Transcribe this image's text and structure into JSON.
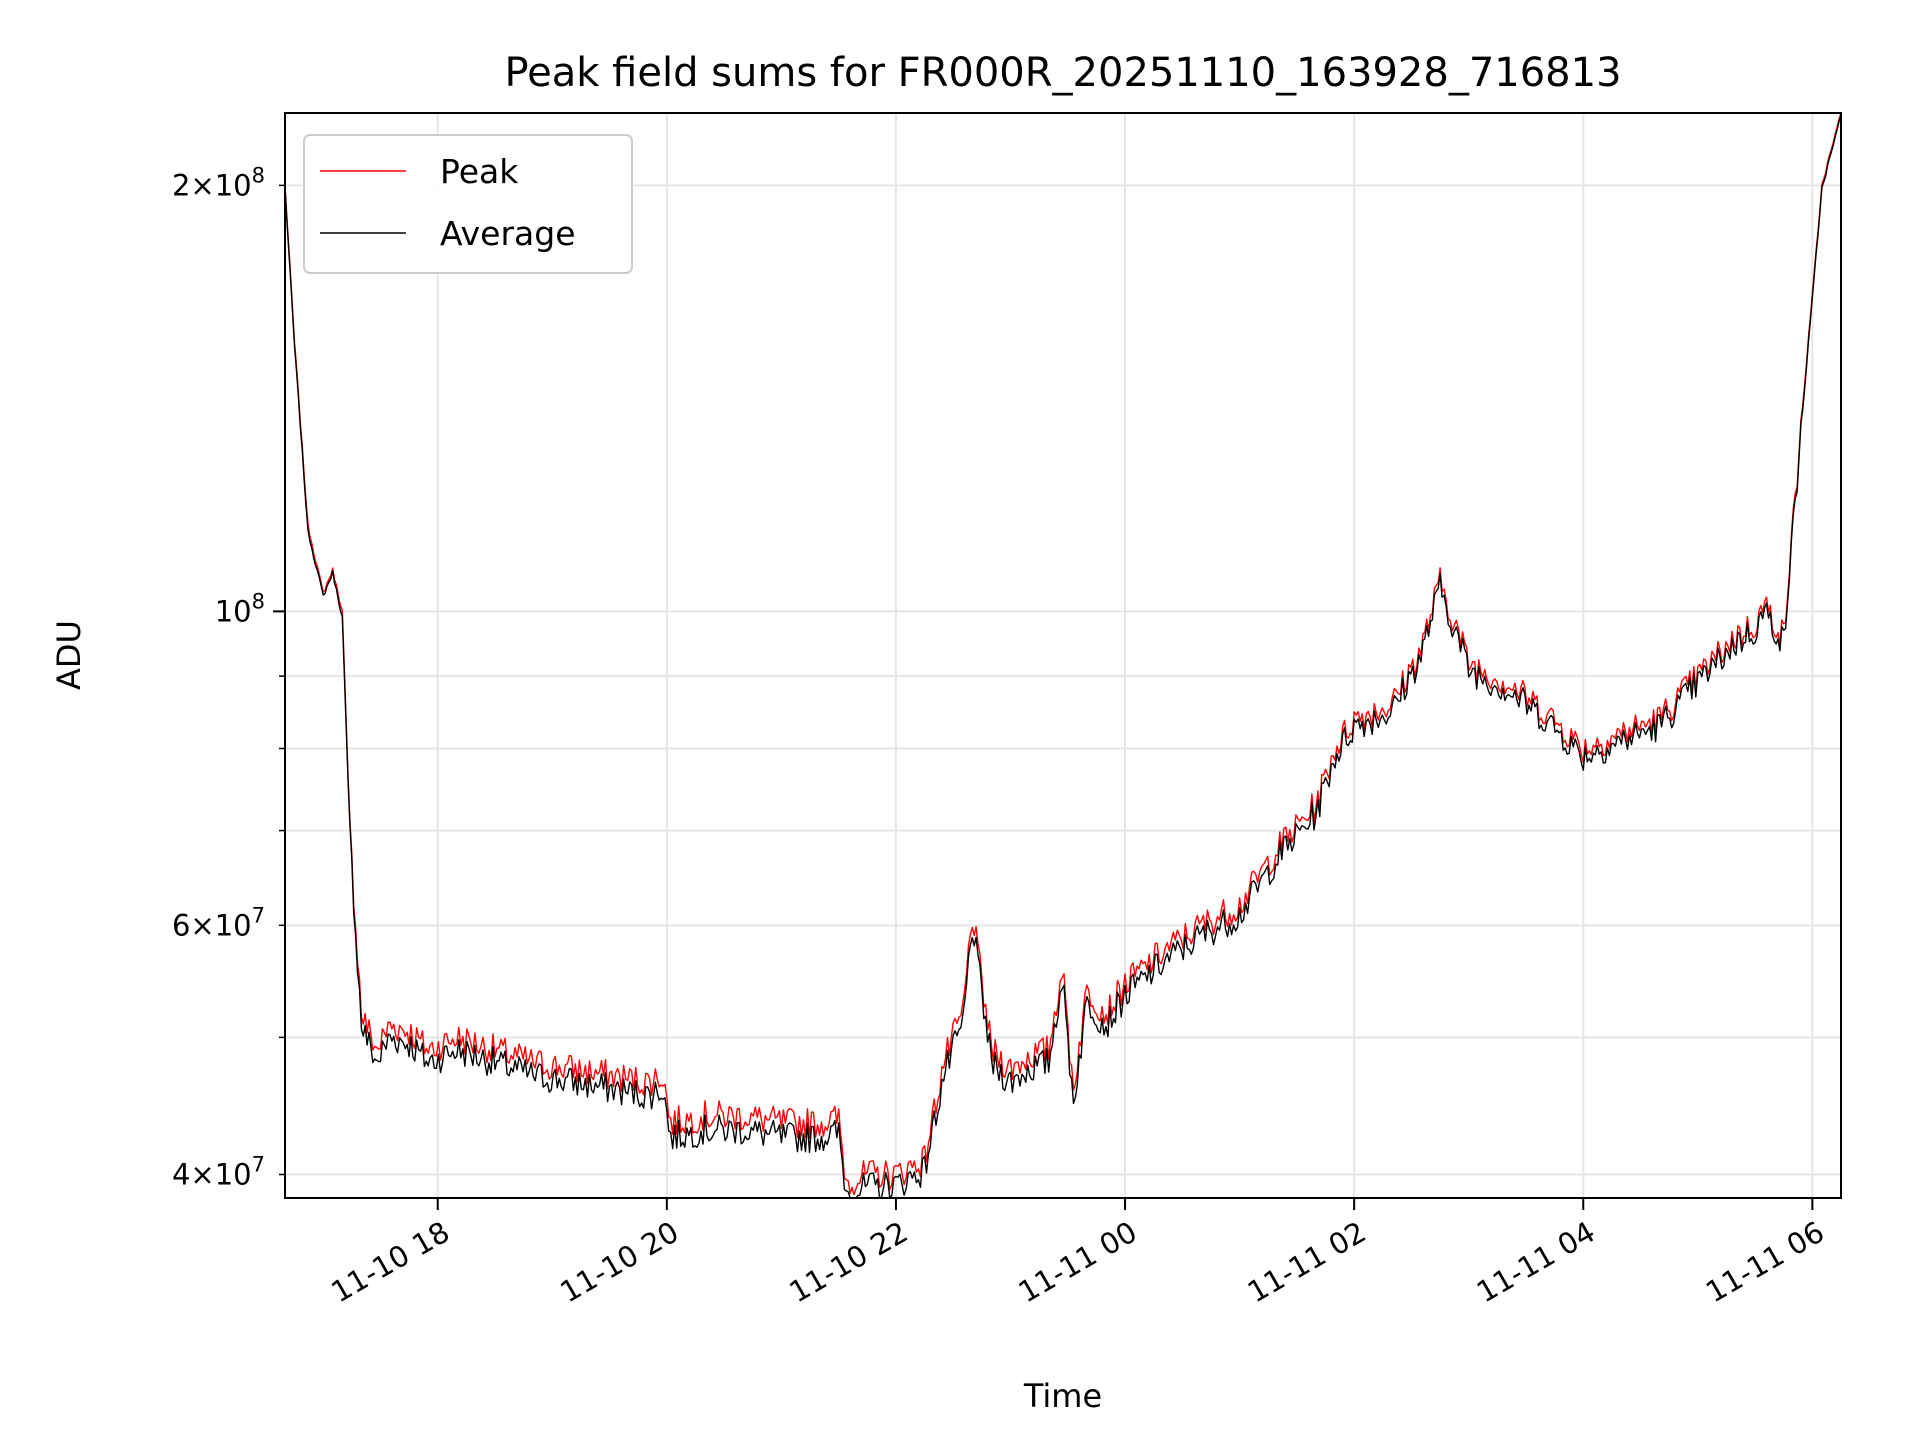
{
  "chart_data": {
    "type": "line",
    "title": "Peak field sums for FR000R_20251110_163928_716813",
    "xlabel": "Time",
    "ylabel": "ADU",
    "y_scale": "log",
    "grid": true,
    "legend_placement": "top-left",
    "xlim": [
      "2025-11-10 16:40",
      "2025-11-11 06:15"
    ],
    "ylim": [
      38500000,
      225000000
    ],
    "x_ticks": [
      "2025-11-10 18:00",
      "2025-11-10 20:00",
      "2025-11-10 22:00",
      "2025-11-11 00:00",
      "2025-11-11 02:00",
      "2025-11-11 04:00",
      "2025-11-11 06:00"
    ],
    "x_tick_labels": [
      "11-10 18",
      "11-10 20",
      "11-10 22",
      "11-11 00",
      "11-11 02",
      "11-11 04",
      "11-11 06"
    ],
    "y_ticks_major": [
      100000000
    ],
    "y_ticks_minor": [
      40000000,
      50000000,
      60000000,
      70000000,
      80000000,
      90000000,
      200000000
    ],
    "y_tick_labels": [
      {
        "value": 40000000,
        "mantissa": "4",
        "exponent": "7"
      },
      {
        "value": 60000000,
        "mantissa": "6",
        "exponent": "7"
      },
      {
        "value": 100000000,
        "mantissa": "",
        "exponent": "8"
      },
      {
        "value": 200000000,
        "mantissa": "2",
        "exponent": "8"
      }
    ],
    "series": [
      {
        "name": "Peak",
        "color": "#ff0000"
      },
      {
        "name": "Average",
        "color": "#000000"
      }
    ],
    "x": [
      "2025-11-10 16:40",
      "2025-11-10 16:45",
      "2025-11-10 16:52",
      "2025-11-10 17:00",
      "2025-11-10 17:05",
      "2025-11-10 17:10",
      "2025-11-10 17:14",
      "2025-11-10 17:20",
      "2025-11-10 17:28",
      "2025-11-10 17:35",
      "2025-11-10 17:45",
      "2025-11-10 17:55",
      "2025-11-10 18:10",
      "2025-11-10 18:30",
      "2025-11-10 18:50",
      "2025-11-10 19:10",
      "2025-11-10 19:30",
      "2025-11-10 19:50",
      "2025-11-10 19:58",
      "2025-11-10 20:02",
      "2025-11-10 20:20",
      "2025-11-10 20:40",
      "2025-11-10 21:00",
      "2025-11-10 21:20",
      "2025-11-10 21:30",
      "2025-11-10 21:34",
      "2025-11-10 21:45",
      "2025-11-10 22:00",
      "2025-11-10 22:15",
      "2025-11-10 22:25",
      "2025-11-10 22:35",
      "2025-11-10 22:40",
      "2025-11-10 22:50",
      "2025-11-10 23:00",
      "2025-11-10 23:10",
      "2025-11-10 23:20",
      "2025-11-10 23:27",
      "2025-11-10 23:33",
      "2025-11-10 23:40",
      "2025-11-10 23:50",
      "2025-11-11 00:00",
      "2025-11-11 00:20",
      "2025-11-11 00:40",
      "2025-11-11 01:00",
      "2025-11-11 01:20",
      "2025-11-11 01:40",
      "2025-11-11 01:50",
      "2025-11-11 02:00",
      "2025-11-11 02:20",
      "2025-11-11 02:35",
      "2025-11-11 02:45",
      "2025-11-11 03:00",
      "2025-11-11 03:20",
      "2025-11-11 03:40",
      "2025-11-11 04:00",
      "2025-11-11 04:20",
      "2025-11-11 04:40",
      "2025-11-11 05:00",
      "2025-11-11 05:20",
      "2025-11-11 05:30",
      "2025-11-11 05:35",
      "2025-11-11 05:45",
      "2025-11-11 05:55",
      "2025-11-11 06:05",
      "2025-11-11 06:15"
    ],
    "peak_values": [
      200000000,
      155000000,
      115000000,
      103000000,
      107000000,
      100000000,
      70000000,
      52000000,
      49000000,
      51000000,
      50500000,
      49000000,
      50000000,
      49000000,
      48000000,
      47500000,
      47000000,
      46500000,
      47000000,
      43500000,
      44000000,
      44000000,
      43500000,
      43500000,
      43800000,
      39500000,
      40000000,
      40000000,
      41000000,
      48000000,
      52000000,
      61000000,
      49000000,
      47500000,
      48500000,
      49000000,
      56000000,
      46000000,
      54000000,
      52000000,
      54500000,
      57500000,
      60000000,
      62000000,
      68000000,
      73000000,
      80000000,
      84000000,
      86000000,
      94000000,
      105000000,
      92000000,
      89000000,
      85000000,
      80000000,
      82000000,
      84000000,
      90000000,
      96000000,
      98000000,
      101000000,
      96000000,
      140000000,
      200000000,
      225000000
    ],
    "average_values": [
      199000000,
      154000000,
      114000000,
      102500000,
      106500000,
      99000000,
      69500000,
      51000000,
      48000000,
      50000000,
      49500000,
      48000000,
      49000000,
      48000000,
      47000000,
      46500000,
      46000000,
      45500000,
      46000000,
      42500000,
      43000000,
      43000000,
      42500000,
      42500000,
      42800000,
      38800000,
      39200000,
      39300000,
      40300000,
      47000000,
      51000000,
      60000000,
      48000000,
      46500000,
      47500000,
      48000000,
      55000000,
      45000000,
      53000000,
      51000000,
      53500000,
      56500000,
      59000000,
      61000000,
      67000000,
      72000000,
      79000000,
      83000000,
      85000000,
      93000000,
      104000000,
      91000000,
      88000000,
      84000000,
      79000000,
      81000000,
      83000000,
      89000000,
      95000000,
      97000000,
      100000000,
      95000000,
      139000000,
      199000000,
      224000000
    ]
  }
}
